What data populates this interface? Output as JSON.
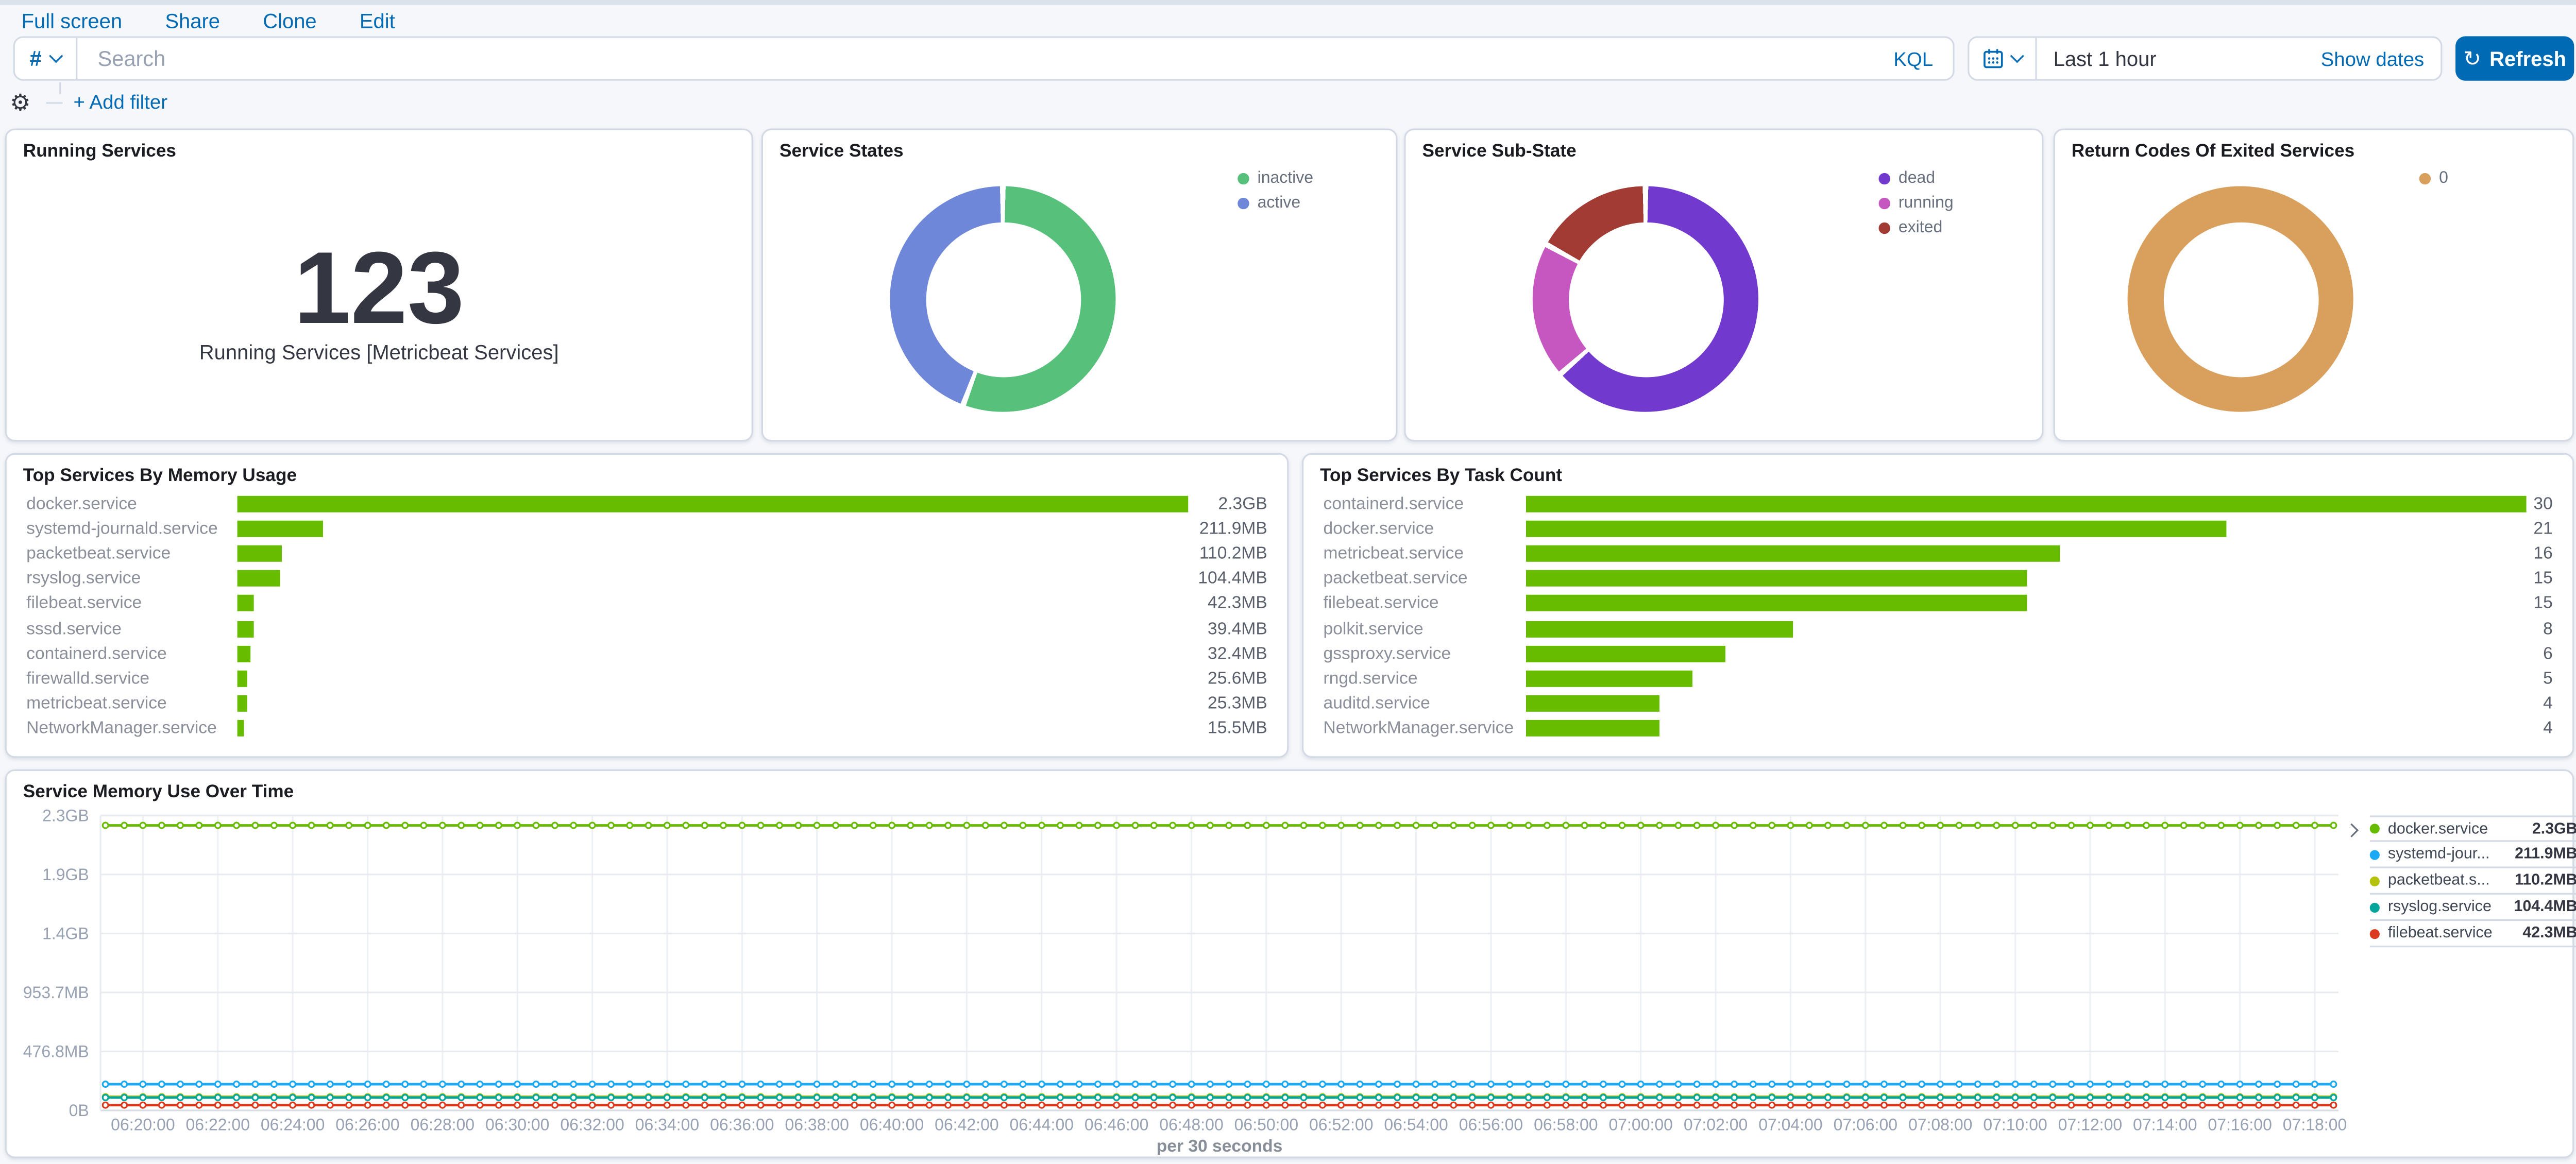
{
  "header": {
    "menu_items": [
      "Full screen",
      "Share",
      "Clone",
      "Edit"
    ]
  },
  "query_bar": {
    "filter_symbol": "#",
    "search_placeholder": "Search",
    "language_label": "KQL",
    "time_range": "Last 1 hour",
    "show_dates_label": "Show dates",
    "refresh_label": "Refresh",
    "refresh_icon": "↻"
  },
  "filter_bar": {
    "gear_icon": "⚙",
    "add_filter_label": "+ Add filter"
  },
  "colors": {
    "primary": "#006BB4",
    "bar_green": "#68BC00",
    "page_bg": "#F5F7FA",
    "panel_border": "#D3DAE6"
  },
  "panels": {
    "running_services": {
      "title": "Running Services",
      "value": "123",
      "caption": "Running Services [Metricbeat Services]"
    },
    "service_states": {
      "title": "Service States",
      "chart_data": {
        "type": "pie",
        "slices": [
          {
            "label": "inactive",
            "color": "#57C17B",
            "fraction": 0.557
          },
          {
            "label": "active",
            "color": "#6F87D8",
            "fraction": 0.443
          }
        ],
        "legend_position": "right"
      }
    },
    "service_sub_state": {
      "title": "Service Sub-State",
      "chart_data": {
        "type": "pie",
        "slices": [
          {
            "label": "dead",
            "color": "#7239CE",
            "fraction": 0.635
          },
          {
            "label": "running",
            "color": "#C757C0",
            "fraction": 0.195
          },
          {
            "label": "exited",
            "color": "#A23B33",
            "fraction": 0.17
          }
        ],
        "legend_position": "right"
      }
    },
    "return_codes": {
      "title": "Return Codes Of Exited Services",
      "chart_data": {
        "type": "pie",
        "slices": [
          {
            "label": "0",
            "color": "#D9A05D",
            "fraction": 1
          }
        ],
        "legend_position": "right"
      }
    },
    "top_memory": {
      "title": "Top Services By Memory Usage",
      "chart_data": {
        "type": "bar",
        "orientation": "horizontal",
        "bar_color": "#68BC00",
        "max_value": 2355.2,
        "items": [
          {
            "label": "docker.service",
            "value": 2355.2,
            "value_label": "2.3GB"
          },
          {
            "label": "systemd-journald.service",
            "value": 211.9,
            "value_label": "211.9MB"
          },
          {
            "label": "packetbeat.service",
            "value": 110.2,
            "value_label": "110.2MB"
          },
          {
            "label": "rsyslog.service",
            "value": 104.4,
            "value_label": "104.4MB"
          },
          {
            "label": "filebeat.service",
            "value": 42.3,
            "value_label": "42.3MB"
          },
          {
            "label": "sssd.service",
            "value": 39.4,
            "value_label": "39.4MB"
          },
          {
            "label": "containerd.service",
            "value": 32.4,
            "value_label": "32.4MB"
          },
          {
            "label": "firewalld.service",
            "value": 25.6,
            "value_label": "25.6MB"
          },
          {
            "label": "metricbeat.service",
            "value": 25.3,
            "value_label": "25.3MB"
          },
          {
            "label": "NetworkManager.service",
            "value": 15.5,
            "value_label": "15.5MB"
          }
        ]
      }
    },
    "top_tasks": {
      "title": "Top Services By Task Count",
      "chart_data": {
        "type": "bar",
        "orientation": "horizontal",
        "bar_color": "#68BC00",
        "max_value": 30,
        "items": [
          {
            "label": "containerd.service",
            "value": 30,
            "value_label": "30"
          },
          {
            "label": "docker.service",
            "value": 21,
            "value_label": "21"
          },
          {
            "label": "metricbeat.service",
            "value": 16,
            "value_label": "16"
          },
          {
            "label": "packetbeat.service",
            "value": 15,
            "value_label": "15"
          },
          {
            "label": "filebeat.service",
            "value": 15,
            "value_label": "15"
          },
          {
            "label": "polkit.service",
            "value": 8,
            "value_label": "8"
          },
          {
            "label": "gssproxy.service",
            "value": 6,
            "value_label": "6"
          },
          {
            "label": "rngd.service",
            "value": 5,
            "value_label": "5"
          },
          {
            "label": "auditd.service",
            "value": 4,
            "value_label": "4"
          },
          {
            "label": "NetworkManager.service",
            "value": 4,
            "value_label": "4"
          }
        ]
      }
    },
    "memory_over_time": {
      "title": "Service Memory Use Over Time",
      "chart_data": {
        "type": "line",
        "x_axis_label": "per 30 seconds",
        "x_tick_labels": [
          "06:20:00",
          "06:22:00",
          "06:24:00",
          "06:26:00",
          "06:28:00",
          "06:30:00",
          "06:32:00",
          "06:34:00",
          "06:36:00",
          "06:38:00",
          "06:40:00",
          "06:42:00",
          "06:44:00",
          "06:46:00",
          "06:48:00",
          "06:50:00",
          "06:52:00",
          "06:54:00",
          "06:56:00",
          "06:58:00",
          "07:00:00",
          "07:02:00",
          "07:04:00",
          "07:06:00",
          "07:08:00",
          "07:10:00",
          "07:12:00",
          "07:14:00",
          "07:16:00",
          "07:18:00"
        ],
        "y_tick_labels": [
          "0B",
          "476.8MB",
          "953.7MB",
          "1.4GB",
          "1.9GB",
          "2.3GB"
        ],
        "y_max_mb": 2384,
        "points_count": 120,
        "grid": true,
        "legend_position": "right",
        "series": [
          {
            "name": "docker.service",
            "color": "#68BC00",
            "value_mb": 2304
          },
          {
            "name": "systemd-journald.service",
            "color": "#1BA9F5",
            "value_mb": 211.9
          },
          {
            "name": "packetbeat.service",
            "color": "#B5C20B",
            "value_mb": 110.2
          },
          {
            "name": "rsyslog.service",
            "color": "#00A69B",
            "value_mb": 104.4
          },
          {
            "name": "filebeat.service",
            "color": "#DC3A1F",
            "value_mb": 42.3
          }
        ],
        "legend": [
          {
            "label": "docker.service",
            "value": "2.3GB",
            "color": "#68BC00"
          },
          {
            "label": "systemd-jour...",
            "value": "211.9MB",
            "color": "#1BA9F5"
          },
          {
            "label": "packetbeat.s...",
            "value": "110.2MB",
            "color": "#B5C20B"
          },
          {
            "label": "rsyslog.service",
            "value": "104.4MB",
            "color": "#00A69B"
          },
          {
            "label": "filebeat.service",
            "value": "42.3MB",
            "color": "#DC3A1F"
          }
        ]
      }
    }
  }
}
